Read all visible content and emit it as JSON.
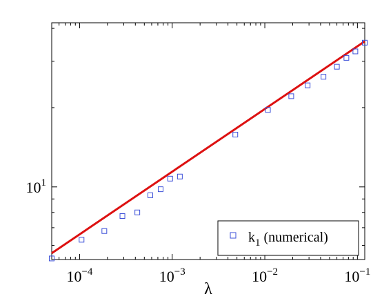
{
  "chart_data": {
    "type": "scatter",
    "title": "",
    "xlabel": "λ",
    "ylabel": "",
    "xscale": "log",
    "yscale": "log",
    "xlim": [
      5e-05,
      0.12
    ],
    "ylim": [
      5.3,
      42
    ],
    "grid": false,
    "legend_position": "bottom-right",
    "x_ticks": [
      {
        "value": 0.0001,
        "base": "10",
        "exp": "−4"
      },
      {
        "value": 0.001,
        "base": "10",
        "exp": "−3"
      },
      {
        "value": 0.01,
        "base": "10",
        "exp": "−2"
      },
      {
        "value": 0.1,
        "base": "10",
        "exp": "−1"
      }
    ],
    "y_ticks": [
      {
        "value": 10,
        "base": "10",
        "exp": "1"
      }
    ],
    "series": [
      {
        "name": "k",
        "name_subscript": "1",
        "name_suffix": " (numerical)",
        "kind": "markers",
        "marker": "open-square",
        "color": "#3b4fd8",
        "points": [
          [
            5e-05,
            5.35
          ],
          [
            0.000105,
            6.3
          ],
          [
            0.000185,
            6.8
          ],
          [
            0.00029,
            7.75
          ],
          [
            0.00042,
            8.0
          ],
          [
            0.00058,
            9.3
          ],
          [
            0.00075,
            9.8
          ],
          [
            0.00095,
            10.75
          ],
          [
            0.00121,
            10.95
          ],
          [
            0.0048,
            15.8
          ],
          [
            0.0108,
            19.6
          ],
          [
            0.0193,
            22.1
          ],
          [
            0.029,
            24.3
          ],
          [
            0.043,
            26.2
          ],
          [
            0.06,
            28.6
          ],
          [
            0.076,
            30.9
          ],
          [
            0.095,
            32.7
          ],
          [
            0.12,
            35.3
          ]
        ]
      },
      {
        "kind": "line",
        "color": "#dd1111",
        "points": [
          [
            5e-05,
            5.6
          ],
          [
            0.12,
            35.7
          ]
        ]
      }
    ]
  }
}
